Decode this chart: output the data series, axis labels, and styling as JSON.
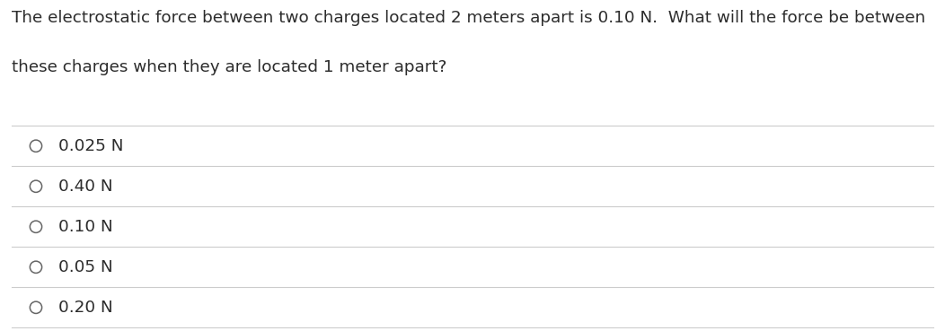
{
  "question_line1": "The electrostatic force between two charges located 2 meters apart is 0.10 N.  What will the force be between",
  "question_line2": "these charges when they are located 1 meter apart?",
  "options": [
    "0.025 N",
    "0.40 N",
    "0.10 N",
    "0.05 N",
    "0.20 N"
  ],
  "bg_color": "#ffffff",
  "text_color": "#2c2c2c",
  "question_fontsize": 13.2,
  "option_fontsize": 13.2,
  "line_color": "#cccccc",
  "circle_color": "#666666"
}
